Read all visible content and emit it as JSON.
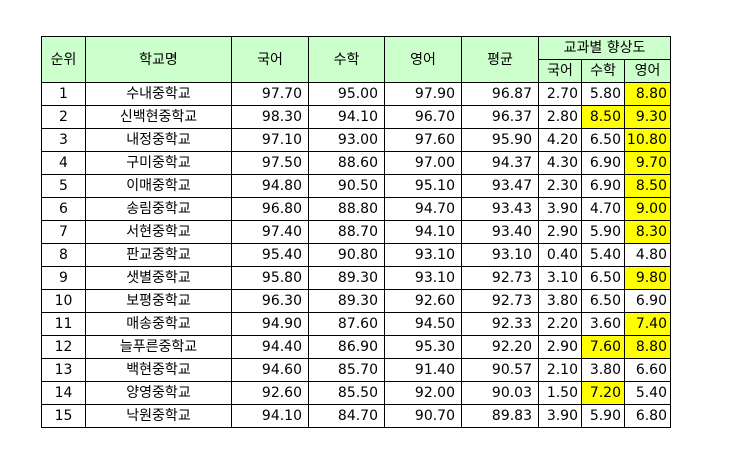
{
  "headers": {
    "rank": "순위",
    "school": "학교명",
    "korean": "국어",
    "math": "수학",
    "english": "영어",
    "average": "평균",
    "improvement": "교과별 향상도",
    "imp_korean": "국어",
    "imp_math": "수학",
    "imp_english": "영어"
  },
  "highlight_color": "#ffff00",
  "header_color": "#ccffcc",
  "rows": [
    {
      "rank": "1",
      "school": "수내중학교",
      "korean": "97.70",
      "math": "95.00",
      "english": "97.90",
      "average": "96.87",
      "imp_korean": "2.70",
      "imp_math": "5.80",
      "imp_english": "8.80",
      "hl_math": false,
      "hl_english": true
    },
    {
      "rank": "2",
      "school": "신백현중학교",
      "korean": "98.30",
      "math": "94.10",
      "english": "96.70",
      "average": "96.37",
      "imp_korean": "2.80",
      "imp_math": "8.50",
      "imp_english": "9.30",
      "hl_math": true,
      "hl_english": true
    },
    {
      "rank": "3",
      "school": "내정중학교",
      "korean": "97.10",
      "math": "93.00",
      "english": "97.60",
      "average": "95.90",
      "imp_korean": "4.20",
      "imp_math": "6.50",
      "imp_english": "10.80",
      "hl_math": false,
      "hl_english": true
    },
    {
      "rank": "4",
      "school": "구미중학교",
      "korean": "97.50",
      "math": "88.60",
      "english": "97.00",
      "average": "94.37",
      "imp_korean": "4.30",
      "imp_math": "6.90",
      "imp_english": "9.70",
      "hl_math": false,
      "hl_english": true
    },
    {
      "rank": "5",
      "school": "이매중학교",
      "korean": "94.80",
      "math": "90.50",
      "english": "95.10",
      "average": "93.47",
      "imp_korean": "2.30",
      "imp_math": "6.90",
      "imp_english": "8.50",
      "hl_math": false,
      "hl_english": true
    },
    {
      "rank": "6",
      "school": "송림중학교",
      "korean": "96.80",
      "math": "88.80",
      "english": "94.70",
      "average": "93.43",
      "imp_korean": "3.90",
      "imp_math": "4.70",
      "imp_english": "9.00",
      "hl_math": false,
      "hl_english": true
    },
    {
      "rank": "7",
      "school": "서현중학교",
      "korean": "97.40",
      "math": "88.70",
      "english": "94.10",
      "average": "93.40",
      "imp_korean": "2.90",
      "imp_math": "5.90",
      "imp_english": "8.30",
      "hl_math": false,
      "hl_english": true
    },
    {
      "rank": "8",
      "school": "판교중학교",
      "korean": "95.40",
      "math": "90.80",
      "english": "93.10",
      "average": "93.10",
      "imp_korean": "0.40",
      "imp_math": "5.40",
      "imp_english": "4.80",
      "hl_math": false,
      "hl_english": false
    },
    {
      "rank": "9",
      "school": "샛별중학교",
      "korean": "95.80",
      "math": "89.30",
      "english": "93.10",
      "average": "92.73",
      "imp_korean": "3.10",
      "imp_math": "6.50",
      "imp_english": "9.80",
      "hl_math": false,
      "hl_english": true
    },
    {
      "rank": "10",
      "school": "보평중학교",
      "korean": "96.30",
      "math": "89.30",
      "english": "92.60",
      "average": "92.73",
      "imp_korean": "3.80",
      "imp_math": "6.50",
      "imp_english": "6.90",
      "hl_math": false,
      "hl_english": false
    },
    {
      "rank": "11",
      "school": "매송중학교",
      "korean": "94.90",
      "math": "87.60",
      "english": "94.50",
      "average": "92.33",
      "imp_korean": "2.20",
      "imp_math": "3.60",
      "imp_english": "7.40",
      "hl_math": false,
      "hl_english": true
    },
    {
      "rank": "12",
      "school": "늘푸른중학교",
      "korean": "94.40",
      "math": "86.90",
      "english": "95.30",
      "average": "92.20",
      "imp_korean": "2.90",
      "imp_math": "7.60",
      "imp_english": "8.80",
      "hl_math": true,
      "hl_english": true
    },
    {
      "rank": "13",
      "school": "백현중학교",
      "korean": "94.60",
      "math": "85.70",
      "english": "91.40",
      "average": "90.57",
      "imp_korean": "2.10",
      "imp_math": "3.80",
      "imp_english": "6.60",
      "hl_math": false,
      "hl_english": false
    },
    {
      "rank": "14",
      "school": "양영중학교",
      "korean": "92.60",
      "math": "85.50",
      "english": "92.00",
      "average": "90.03",
      "imp_korean": "1.50",
      "imp_math": "7.20",
      "imp_english": "5.40",
      "hl_math": true,
      "hl_english": false
    },
    {
      "rank": "15",
      "school": "낙원중학교",
      "korean": "94.10",
      "math": "84.70",
      "english": "90.70",
      "average": "89.83",
      "imp_korean": "3.90",
      "imp_math": "5.90",
      "imp_english": "6.80",
      "hl_math": false,
      "hl_english": false
    }
  ]
}
